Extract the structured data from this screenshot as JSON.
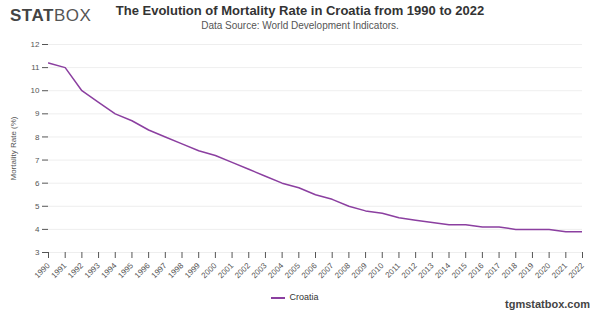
{
  "chart_data": {
    "type": "line",
    "title": "The Evolution of Mortality Rate in Croatia from 1990 to 2022",
    "subtitle": "Data Source: World Development Indicators.",
    "logo": [
      "STAT",
      "BOX"
    ],
    "source_url": "tgmstatbox.com",
    "y_label": "Mortality Rate (%)",
    "x": [
      1990,
      1991,
      1992,
      1993,
      1994,
      1995,
      1996,
      1997,
      1998,
      1999,
      2000,
      2001,
      2002,
      2003,
      2004,
      2005,
      2006,
      2007,
      2008,
      2009,
      2010,
      2011,
      2012,
      2013,
      2014,
      2015,
      2016,
      2017,
      2018,
      2019,
      2020,
      2021,
      2022
    ],
    "series": [
      {
        "name": "Croatia",
        "color": "#8b3fa0",
        "values": [
          11.2,
          11.0,
          10.0,
          9.5,
          9.0,
          8.7,
          8.3,
          8.0,
          7.7,
          7.4,
          7.2,
          6.9,
          6.6,
          6.3,
          6.0,
          5.8,
          5.5,
          5.3,
          5.0,
          4.8,
          4.7,
          4.5,
          4.4,
          4.3,
          4.2,
          4.2,
          4.1,
          4.1,
          4.0,
          4.0,
          4.0,
          3.9,
          3.9
        ]
      }
    ],
    "xlim": [
      1990,
      2022
    ],
    "xticks": [
      1990,
      1991,
      1992,
      1993,
      1994,
      1995,
      1996,
      1997,
      1998,
      1999,
      2000,
      2001,
      2002,
      2003,
      2004,
      2005,
      2006,
      2007,
      2008,
      2009,
      2010,
      2011,
      2012,
      2013,
      2014,
      2015,
      2016,
      2017,
      2018,
      2019,
      2020,
      2021,
      2022
    ],
    "ylim": [
      3,
      12
    ],
    "yticks": [
      3,
      4,
      5,
      6,
      7,
      8,
      9,
      10,
      11,
      12
    ],
    "grid": true,
    "legend": "bottom"
  }
}
